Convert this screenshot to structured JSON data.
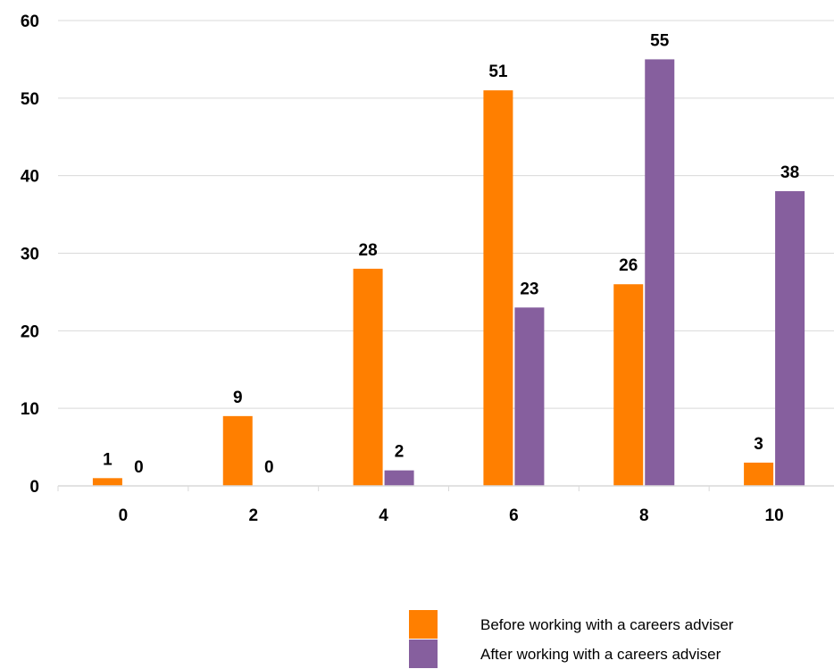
{
  "chart_data": {
    "type": "bar",
    "title": "",
    "xlabel": "",
    "ylabel": "",
    "categories": [
      "0",
      "2",
      "4",
      "6",
      "8",
      "10"
    ],
    "series": [
      {
        "name": "Before working with a careers adviser",
        "color": "#FF7F00",
        "values": [
          1,
          9,
          28,
          51,
          26,
          3
        ]
      },
      {
        "name": "After working with a careers adviser",
        "color": "#865F9E",
        "values": [
          0,
          0,
          2,
          23,
          55,
          38
        ]
      }
    ],
    "ylim": [
      0,
      60
    ],
    "yticks": [
      0,
      10,
      20,
      30,
      40,
      50,
      60
    ],
    "grid": true,
    "legend": "bottom-right",
    "data_labels": true
  }
}
